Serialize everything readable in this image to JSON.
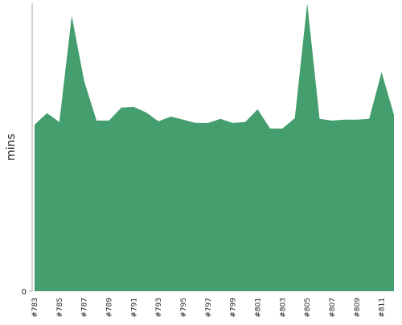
{
  "chart_data": {
    "type": "area",
    "ylabel": "mins",
    "categories": [
      "#783",
      null,
      "#785",
      null,
      "#787",
      null,
      "#789",
      null,
      "#791",
      null,
      "#793",
      null,
      "#795",
      null,
      "#797",
      null,
      "#799",
      null,
      "#801",
      null,
      "#803",
      null,
      "#805",
      null,
      "#807",
      null,
      "#809",
      null,
      "#811",
      null
    ],
    "values": [
      69.4,
      74.2,
      70.5,
      114.8,
      87.6,
      71.1,
      71.1,
      76.5,
      76.8,
      74.5,
      70.8,
      72.8,
      71.5,
      70.1,
      70.1,
      71.8,
      70.1,
      70.5,
      75.8,
      67.8,
      67.8,
      72.1,
      120,
      71.8,
      71.1,
      71.5,
      71.5,
      71.8,
      91.3,
      73.5
    ],
    "color": "#459e6e",
    "ylim": [
      0,
      120
    ],
    "yticks": [
      0
    ]
  }
}
